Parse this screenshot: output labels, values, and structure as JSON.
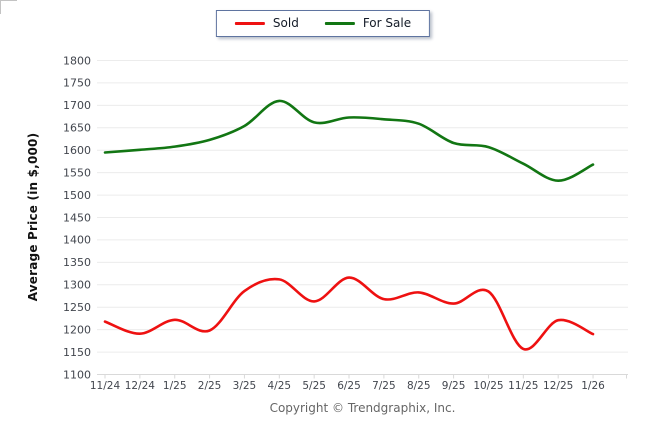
{
  "chart_data": {
    "type": "line",
    "title": "",
    "categories": [
      "11/24",
      "12/24",
      "1/25",
      "2/25",
      "3/25",
      "4/25",
      "5/25",
      "6/25",
      "7/25",
      "8/25",
      "9/25",
      "10/25",
      "11/25",
      "12/25",
      "1/26"
    ],
    "series": [
      {
        "name": "Sold",
        "color": "#ee1111",
        "values": [
          1218,
          1191,
          1222,
          1198,
          1286,
          1312,
          1263,
          1316,
          1268,
          1283,
          1258,
          1285,
          1157,
          1221,
          1190
        ]
      },
      {
        "name": "For Sale",
        "color": "#127613",
        "values": [
          1595,
          1601,
          1608,
          1623,
          1654,
          1710,
          1662,
          1673,
          1669,
          1659,
          1616,
          1607,
          1570,
          1532,
          1568
        ]
      }
    ],
    "xlabel": "",
    "ylabel": "Average Price (in $,000)",
    "ylim": [
      1100,
      1800
    ],
    "ytick_step": 50,
    "grid": true,
    "legend_position": "top-center",
    "footer": "Copyright © Trendgraphix, Inc.",
    "style": {
      "background": "#ffffff",
      "grid_color": "#ececec",
      "axis_color": "#d9d9d9",
      "tick_label_color": "#42464e",
      "ylabel_color": "#111111",
      "footer_color": "#666666",
      "legend_border_color": "#5f74a0",
      "legend_text_color": "#151c28"
    }
  }
}
